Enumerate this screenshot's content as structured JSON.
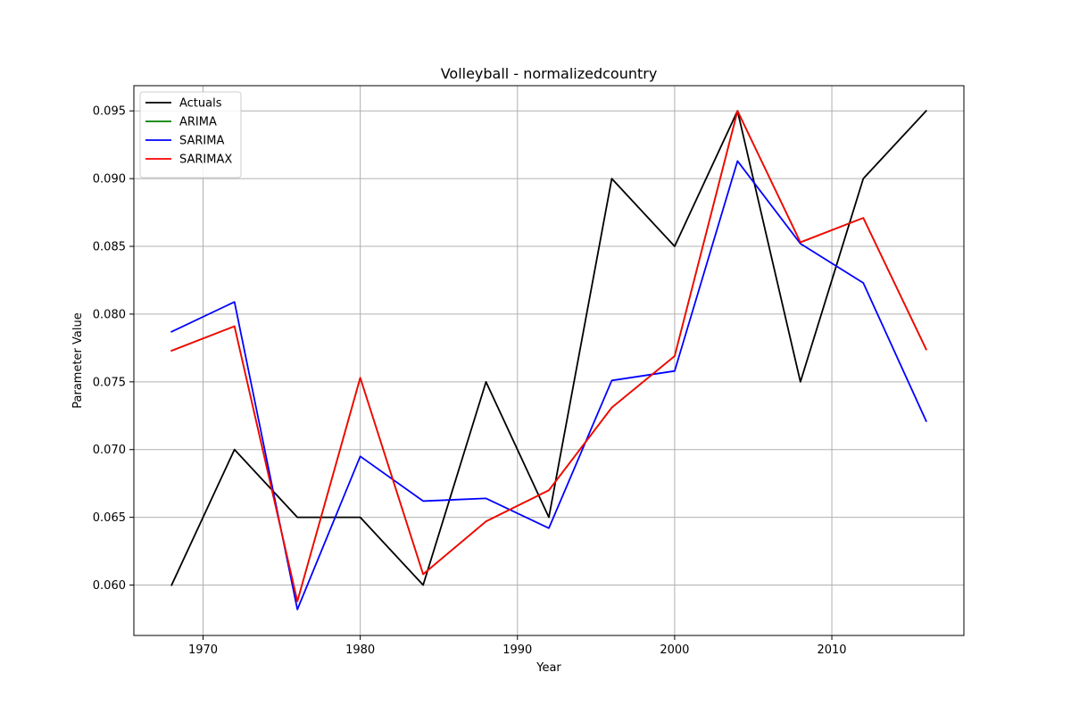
{
  "chart_data": {
    "type": "line",
    "title": "Volleyball - normalizedcountry",
    "xlabel": "Year",
    "ylabel": "Parameter Value",
    "xlim": [
      1965.6,
      2018.4
    ],
    "ylim": [
      0.05628,
      0.09686
    ],
    "xticks": [
      1970,
      1980,
      1990,
      2000,
      2010
    ],
    "yticks": [
      0.06,
      0.065,
      0.07,
      0.075,
      0.08,
      0.085,
      0.09,
      0.095
    ],
    "yticks_labels": [
      "0.060",
      "0.065",
      "0.070",
      "0.075",
      "0.080",
      "0.085",
      "0.090",
      "0.095"
    ],
    "grid": true,
    "legend_position": "top-left",
    "x": [
      1968,
      1972,
      1976,
      1980,
      1984,
      1988,
      1992,
      1996,
      2000,
      2004,
      2008,
      2012,
      2016
    ],
    "series": [
      {
        "name": "Actuals",
        "color": "#000000",
        "values": [
          0.06,
          0.07,
          0.065,
          0.065,
          0.06,
          0.075,
          0.065,
          0.09,
          0.085,
          0.095,
          0.075,
          0.09,
          0.095
        ]
      },
      {
        "name": "ARIMA",
        "color": "#008000",
        "values": [
          0.0773,
          0.0791,
          0.0588,
          0.0753,
          0.0608,
          0.0647,
          0.067,
          0.0731,
          0.0769,
          0.095,
          0.0853,
          0.0871,
          0.0774
        ]
      },
      {
        "name": "SARIMA",
        "color": "#0000ff",
        "values": [
          0.0787,
          0.0809,
          0.0582,
          0.0695,
          0.0662,
          0.0664,
          0.0642,
          0.0751,
          0.0758,
          0.0913,
          0.0852,
          0.0823,
          0.0721
        ]
      },
      {
        "name": "SARIMAX",
        "color": "#ff0000",
        "values": [
          0.0773,
          0.0791,
          0.0588,
          0.0753,
          0.0608,
          0.0647,
          0.067,
          0.0731,
          0.0769,
          0.095,
          0.0853,
          0.0871,
          0.0774
        ]
      }
    ]
  }
}
